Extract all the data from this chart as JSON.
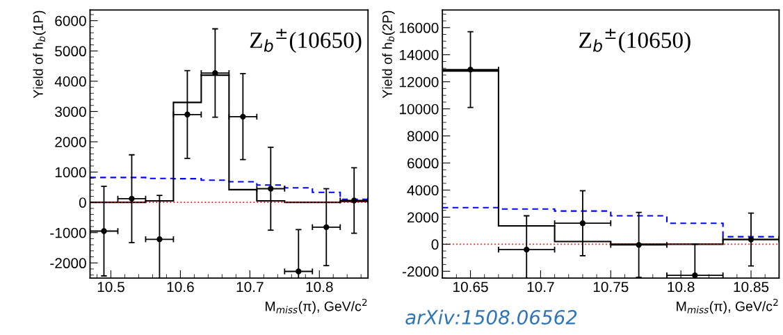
{
  "chart_data": [
    {
      "type": "scatter",
      "xlabel": "M$_{miss}$(π), GeV/c$^{2}$",
      "ylabel": "Yield of h$_{b}$(1P)",
      "annotations": [
        "Z$_{b}$$^{±}$(10650)"
      ],
      "xlim": [
        10.47,
        10.87
      ],
      "xticks": [
        10.5,
        10.6,
        10.7,
        10.8
      ],
      "ylim": [
        -2500,
        6350
      ],
      "yticks": [
        -2000,
        -1000,
        0,
        1000,
        2000,
        3000,
        4000,
        5000,
        6000
      ],
      "grid": false,
      "legend": false,
      "marker": "circle",
      "ref_lines": [
        {
          "axis": "y",
          "value": 0,
          "color": "#ff0000",
          "line_style": "dotted"
        }
      ],
      "series": [
        {
          "type": "histogram",
          "color": "#0000ff",
          "line_style": "dashed",
          "bins": [
            10.47,
            10.51,
            10.55,
            10.59,
            10.63,
            10.67,
            10.71,
            10.75,
            10.79,
            10.83,
            10.87
          ],
          "values": [
            820,
            820,
            790,
            780,
            730,
            680,
            570,
            480,
            330,
            100
          ]
        },
        {
          "type": "histogram",
          "color": "#000000",
          "line_style": "solid",
          "bins": [
            10.47,
            10.51,
            10.55,
            10.59,
            10.63,
            10.67,
            10.71,
            10.75,
            10.79,
            10.83,
            10.87
          ],
          "values": [
            0,
            0,
            50,
            3300,
            4200,
            420,
            50,
            0,
            0,
            30
          ]
        },
        {
          "type": "scatter",
          "color": "#000000",
          "x": [
            10.49,
            10.53,
            10.57,
            10.61,
            10.65,
            10.69,
            10.73,
            10.77,
            10.81,
            10.85
          ],
          "values": [
            -950,
            120,
            -1220,
            2900,
            4270,
            2830,
            450,
            -2280,
            -820,
            60
          ],
          "errors": [
            1480,
            1450,
            1450,
            1450,
            1460,
            1420,
            1370,
            1380,
            1270,
            1080
          ],
          "xerrors": [
            0.02,
            0.02,
            0.02,
            0.02,
            0.02,
            0.02,
            0.02,
            0.02,
            0.02,
            0.02
          ]
        }
      ]
    },
    {
      "type": "scatter",
      "xlabel": "M$_{miss}$(π), GeV/c$^{2}$",
      "ylabel": "Yield of h$_{b}$(2P)",
      "annotations": [
        "Z$_{b}$$^{±}$(10650)",
        "arXiv:1508.06562"
      ],
      "xlim": [
        10.63,
        10.87
      ],
      "xticks": [
        10.65,
        10.7,
        10.75,
        10.8,
        10.85
      ],
      "ylim": [
        -2500,
        17300
      ],
      "yticks": [
        -2000,
        0,
        2000,
        4000,
        6000,
        8000,
        10000,
        12000,
        14000,
        16000
      ],
      "grid": false,
      "legend": false,
      "marker": "circle",
      "ref_lines": [
        {
          "axis": "y",
          "value": 0,
          "color": "#ff0000",
          "line_style": "dotted"
        }
      ],
      "series": [
        {
          "type": "histogram",
          "color": "#0000ff",
          "line_style": "dashed",
          "bins": [
            10.63,
            10.67,
            10.71,
            10.75,
            10.79,
            10.83,
            10.87
          ],
          "values": [
            2700,
            2600,
            2450,
            2100,
            1550,
            550
          ]
        },
        {
          "type": "histogram",
          "color": "#000000",
          "line_style": "solid",
          "bins": [
            10.63,
            10.67,
            10.71,
            10.75,
            10.79,
            10.83,
            10.87
          ],
          "values": [
            12800,
            1350,
            200,
            0,
            0,
            350
          ]
        },
        {
          "type": "scatter",
          "color": "#000000",
          "x": [
            10.65,
            10.69,
            10.73,
            10.77,
            10.81,
            10.85
          ],
          "values": [
            12900,
            -400,
            1550,
            -50,
            -2300,
            350
          ],
          "errors": [
            2800,
            2500,
            2400,
            2400,
            2300,
            1950
          ],
          "xerrors": [
            0.02,
            0.02,
            0.02,
            0.02,
            0.02,
            0.02
          ]
        }
      ]
    }
  ]
}
